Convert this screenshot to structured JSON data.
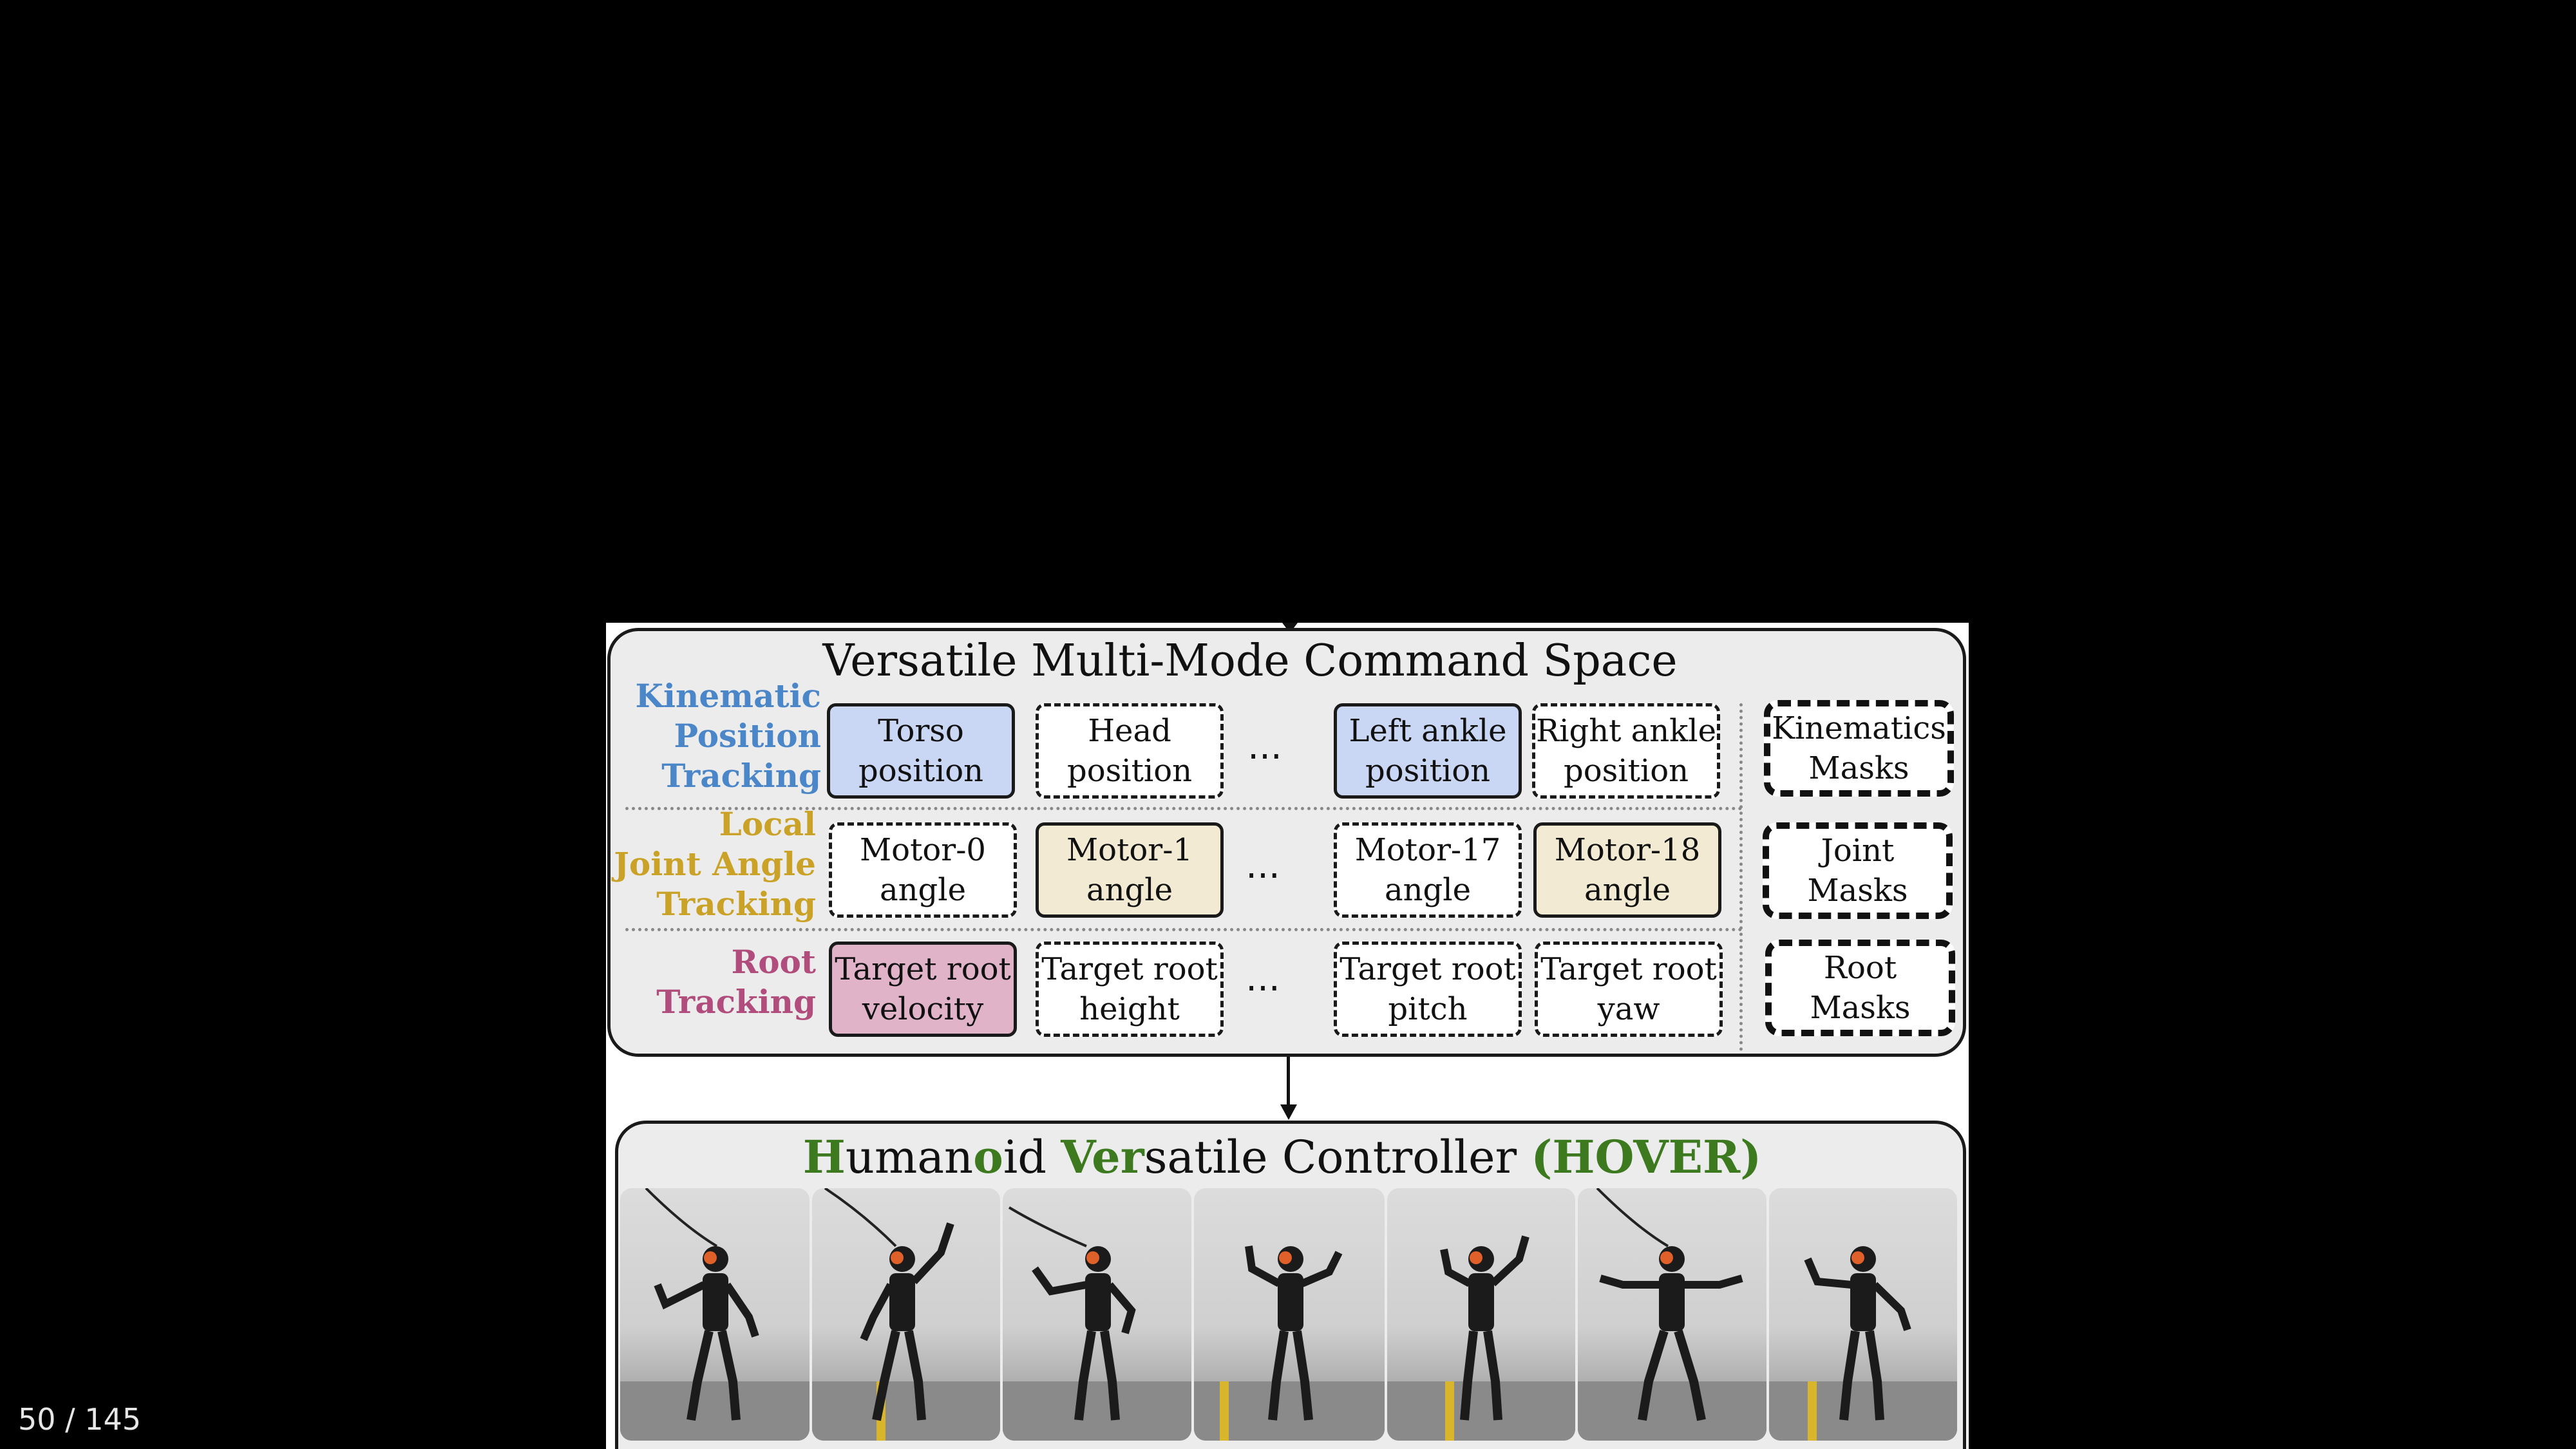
{
  "slide": {
    "command_space_title": "Versatile Multi-Mode Command Space",
    "rows": [
      {
        "label": [
          "Kinematic",
          "Position",
          "Tracking"
        ],
        "label_color": "#4a86c8",
        "boxes": [
          {
            "text": [
              "Torso",
              "position"
            ],
            "style": "solid",
            "fill": "#c9d7f4"
          },
          {
            "text": [
              "Head",
              "position"
            ],
            "style": "dash",
            "fill": "#ffffff"
          },
          {
            "text": [
              "Left ankle",
              "position"
            ],
            "style": "solid",
            "fill": "#c9d7f4"
          },
          {
            "text": [
              "Right ankle",
              "position"
            ],
            "style": "dash",
            "fill": "#ffffff"
          }
        ],
        "mask": [
          "Kinematics",
          "Masks"
        ]
      },
      {
        "label": [
          "Local",
          "Joint Angle",
          "Tracking"
        ],
        "label_color": "#c9a227",
        "boxes": [
          {
            "text": [
              "Motor-0",
              "angle"
            ],
            "style": "dash",
            "fill": "#ffffff"
          },
          {
            "text": [
              "Motor-1",
              "angle"
            ],
            "style": "solid",
            "fill": "#f2ead2"
          },
          {
            "text": [
              "Motor-17",
              "angle"
            ],
            "style": "dash",
            "fill": "#ffffff"
          },
          {
            "text": [
              "Motor-18",
              "angle"
            ],
            "style": "solid",
            "fill": "#f2ead2"
          }
        ],
        "mask": [
          "Joint",
          "Masks"
        ]
      },
      {
        "label": [
          "Root",
          "Tracking"
        ],
        "label_color": "#b04d7c",
        "boxes": [
          {
            "text": [
              "Target root",
              "velocity"
            ],
            "style": "solid",
            "fill": "#e0b3c8"
          },
          {
            "text": [
              "Target root",
              "height"
            ],
            "style": "dash",
            "fill": "#ffffff"
          },
          {
            "text": [
              "Target root",
              "pitch"
            ],
            "style": "dash",
            "fill": "#ffffff"
          },
          {
            "text": [
              "Target root",
              "yaw"
            ],
            "style": "dash",
            "fill": "#ffffff"
          }
        ],
        "mask": [
          "Root",
          "Masks"
        ]
      }
    ],
    "ellipsis": "...",
    "controller_title": {
      "parts": [
        {
          "text": "H",
          "green": true
        },
        {
          "text": "uman",
          "green": false
        },
        {
          "text": "o",
          "green": true
        },
        {
          "text": "id ",
          "green": false
        },
        {
          "text": "Ver",
          "green": true
        },
        {
          "text": "satile Controller ",
          "green": false
        },
        {
          "text": "(HOVER)",
          "green": true
        }
      ],
      "green_color": "#3d7a1f"
    },
    "photo_count": 7
  },
  "page_counter": "50 / 145"
}
